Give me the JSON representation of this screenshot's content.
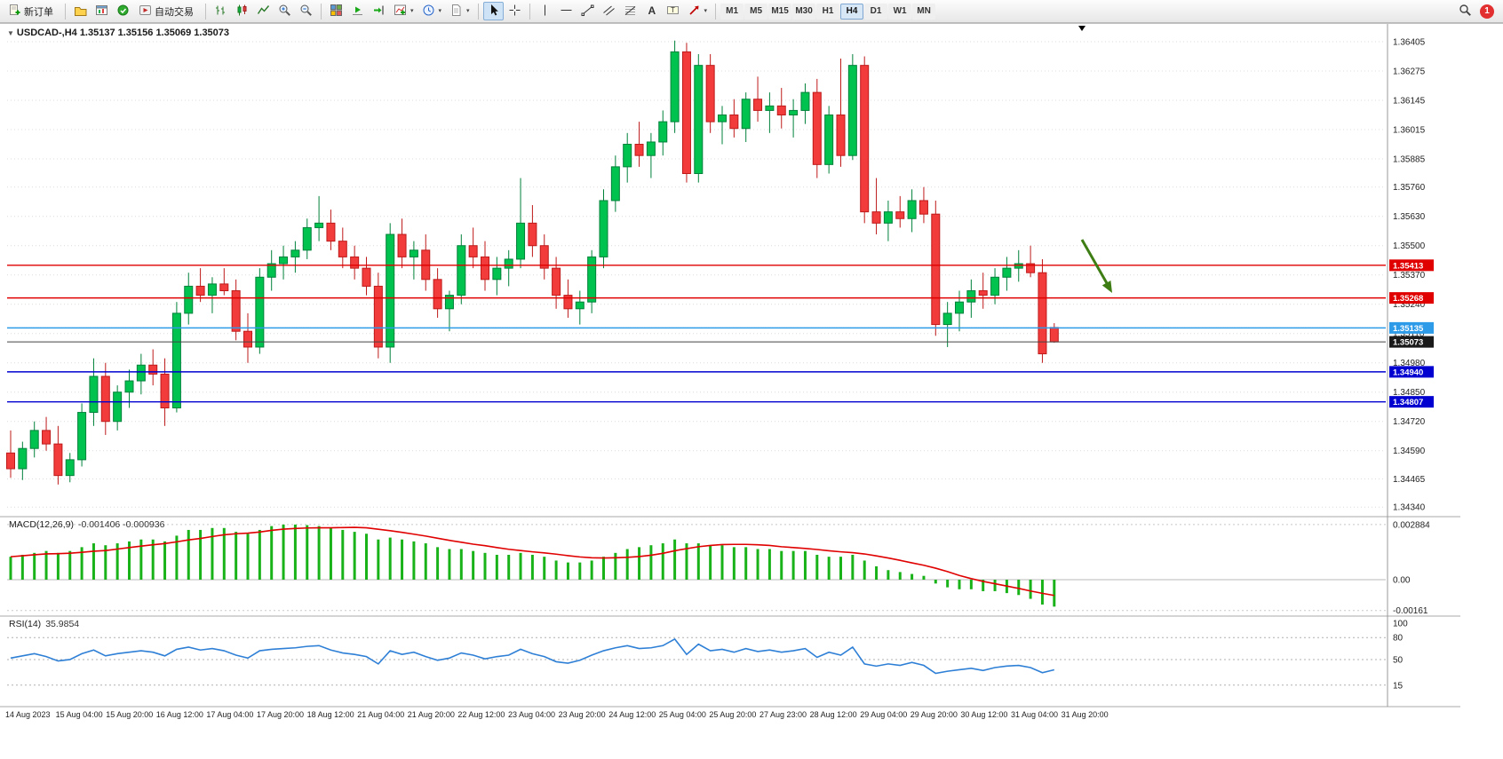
{
  "toolbar": {
    "new_order_label": "新订单",
    "autotrading_label": "自动交易",
    "timeframes": [
      "M1",
      "M5",
      "M15",
      "M30",
      "H1",
      "H4",
      "D1",
      "W1",
      "MN"
    ],
    "active_timeframe": "H4",
    "notification_count": "1",
    "icon_names": [
      "new-order",
      "profiles",
      "new-chart",
      "market",
      "autotrading",
      "bar-chart",
      "candlestick-chart",
      "line-chart",
      "zoom-in",
      "zoom-out",
      "tile-windows",
      "auto-scroll",
      "chart-shift",
      "indicators",
      "periods",
      "templates",
      "cursor",
      "crosshair",
      "vertical-line",
      "horizontal-line",
      "trendline",
      "channel",
      "fibonacci",
      "text",
      "text-label",
      "shapes",
      "search"
    ]
  },
  "chart_window": {
    "symbol_label": "USDCAD-,H4 1.35137 1.35156 1.35069 1.35073",
    "price_axis": [
      "1.36405",
      "1.36275",
      "1.36145",
      "1.36015",
      "1.35885",
      "1.35760",
      "1.35630",
      "1.35500",
      "1.35370",
      "1.35240",
      "1.35110",
      "1.34980",
      "1.34850",
      "1.34720",
      "1.34590",
      "1.34465",
      "1.34340"
    ],
    "time_axis": [
      "14 Aug 2023",
      "15 Aug 04:00",
      "15 Aug 20:00",
      "16 Aug 12:00",
      "17 Aug 04:00",
      "17 Aug 20:00",
      "18 Aug 12:00",
      "21 Aug 04:00",
      "21 Aug 20:00",
      "22 Aug 12:00",
      "23 Aug 04:00",
      "23 Aug 20:00",
      "24 Aug 12:00",
      "25 Aug 04:00",
      "25 Aug 20:00",
      "27 Aug 23:00",
      "28 Aug 12:00",
      "29 Aug 04:00",
      "29 Aug 20:00",
      "30 Aug 12:00",
      "31 Aug 04:00",
      "31 Aug 20:00"
    ],
    "hlines": [
      {
        "price": 1.35413,
        "label": "1.35413",
        "color": "#E00000"
      },
      {
        "price": 1.35268,
        "label": "1.35268",
        "color": "#E00000"
      },
      {
        "price": 1.35135,
        "label": "1.35135",
        "color": "#2E9BE8"
      },
      {
        "price": 1.3494,
        "label": "1.34940",
        "color": "#0000D0"
      },
      {
        "price": 1.34807,
        "label": "1.34807",
        "color": "#0000D0"
      }
    ],
    "bid": {
      "price": 1.35073,
      "label": "1.35073",
      "color": "#1A1A1A"
    },
    "colors": {
      "up": "#00C24E",
      "up_border": "#00813A",
      "down": "#F23B3B",
      "down_border": "#BE1A1A",
      "grid": "#DCDCDC",
      "macd_hist": "#19B219",
      "macd_signal": "#E00000",
      "rsi_line": "#2E7FD6",
      "arrow": "#3E7D14"
    }
  },
  "chart_data": {
    "type": "candlestick",
    "symbol": "USDCAD",
    "period": "H4",
    "ohlc_current": {
      "open": "1.35137",
      "high": "1.35156",
      "low": "1.35069",
      "close": "1.35073"
    },
    "candles": [
      [
        1.3458,
        1.3468,
        1.3447,
        1.3451
      ],
      [
        1.3451,
        1.3463,
        1.3446,
        1.346
      ],
      [
        1.346,
        1.3472,
        1.3456,
        1.3468
      ],
      [
        1.3468,
        1.3474,
        1.3459,
        1.3462
      ],
      [
        1.3462,
        1.347,
        1.3444,
        1.3448
      ],
      [
        1.3448,
        1.3458,
        1.3445,
        1.3455
      ],
      [
        1.3455,
        1.348,
        1.3452,
        1.3476
      ],
      [
        1.3476,
        1.35,
        1.347,
        1.3492
      ],
      [
        1.3492,
        1.3498,
        1.3466,
        1.3472
      ],
      [
        1.3472,
        1.3488,
        1.3468,
        1.3485
      ],
      [
        1.3485,
        1.3495,
        1.3478,
        1.349
      ],
      [
        1.349,
        1.3502,
        1.3484,
        1.3497
      ],
      [
        1.3497,
        1.3504,
        1.3488,
        1.3493
      ],
      [
        1.3493,
        1.35,
        1.347,
        1.3478
      ],
      [
        1.3478,
        1.3525,
        1.3476,
        1.352
      ],
      [
        1.352,
        1.3538,
        1.3515,
        1.3532
      ],
      [
        1.3532,
        1.354,
        1.3525,
        1.3528
      ],
      [
        1.3528,
        1.3536,
        1.352,
        1.3533
      ],
      [
        1.3533,
        1.354,
        1.3528,
        1.353
      ],
      [
        1.353,
        1.3535,
        1.3508,
        1.3512
      ],
      [
        1.3512,
        1.352,
        1.3498,
        1.3505
      ],
      [
        1.3505,
        1.354,
        1.3502,
        1.3536
      ],
      [
        1.3536,
        1.3548,
        1.353,
        1.3542
      ],
      [
        1.3542,
        1.355,
        1.3535,
        1.3545
      ],
      [
        1.3545,
        1.3552,
        1.3538,
        1.3548
      ],
      [
        1.3548,
        1.3562,
        1.3544,
        1.3558
      ],
      [
        1.3558,
        1.3572,
        1.3552,
        1.356
      ],
      [
        1.356,
        1.3566,
        1.3548,
        1.3552
      ],
      [
        1.3552,
        1.3558,
        1.354,
        1.3545
      ],
      [
        1.3545,
        1.355,
        1.3535,
        1.354
      ],
      [
        1.354,
        1.3545,
        1.3528,
        1.3532
      ],
      [
        1.3532,
        1.3538,
        1.35,
        1.3505
      ],
      [
        1.3505,
        1.356,
        1.3498,
        1.3555
      ],
      [
        1.3555,
        1.3562,
        1.354,
        1.3545
      ],
      [
        1.3545,
        1.3552,
        1.3535,
        1.3548
      ],
      [
        1.3548,
        1.3555,
        1.353,
        1.3535
      ],
      [
        1.3535,
        1.354,
        1.3518,
        1.3522
      ],
      [
        1.3522,
        1.353,
        1.3512,
        1.3528
      ],
      [
        1.3528,
        1.3555,
        1.3524,
        1.355
      ],
      [
        1.355,
        1.3558,
        1.354,
        1.3545
      ],
      [
        1.3545,
        1.3552,
        1.353,
        1.3535
      ],
      [
        1.3535,
        1.3545,
        1.3528,
        1.354
      ],
      [
        1.354,
        1.3548,
        1.3532,
        1.3544
      ],
      [
        1.3544,
        1.358,
        1.354,
        1.356
      ],
      [
        1.356,
        1.3568,
        1.3545,
        1.355
      ],
      [
        1.355,
        1.3555,
        1.3535,
        1.354
      ],
      [
        1.354,
        1.3545,
        1.3522,
        1.3528
      ],
      [
        1.3528,
        1.3535,
        1.3518,
        1.3522
      ],
      [
        1.3522,
        1.353,
        1.3515,
        1.3525
      ],
      [
        1.3525,
        1.3548,
        1.352,
        1.3545
      ],
      [
        1.3545,
        1.3575,
        1.354,
        1.357
      ],
      [
        1.357,
        1.359,
        1.3565,
        1.3585
      ],
      [
        1.3585,
        1.36,
        1.3578,
        1.3595
      ],
      [
        1.3595,
        1.3605,
        1.3585,
        1.359
      ],
      [
        1.359,
        1.36,
        1.358,
        1.3596
      ],
      [
        1.3596,
        1.361,
        1.359,
        1.3605
      ],
      [
        1.3605,
        1.3641,
        1.36,
        1.3636
      ],
      [
        1.3636,
        1.364,
        1.3578,
        1.3582
      ],
      [
        1.3582,
        1.3635,
        1.3578,
        1.363
      ],
      [
        1.363,
        1.3635,
        1.36,
        1.3605
      ],
      [
        1.3605,
        1.3612,
        1.3595,
        1.3608
      ],
      [
        1.3608,
        1.3615,
        1.3598,
        1.3602
      ],
      [
        1.3602,
        1.3618,
        1.3596,
        1.3615
      ],
      [
        1.3615,
        1.3625,
        1.3605,
        1.361
      ],
      [
        1.361,
        1.3618,
        1.36,
        1.3612
      ],
      [
        1.3612,
        1.362,
        1.3602,
        1.3608
      ],
      [
        1.3608,
        1.3615,
        1.3598,
        1.361
      ],
      [
        1.361,
        1.3622,
        1.3604,
        1.3618
      ],
      [
        1.3618,
        1.3624,
        1.358,
        1.3586
      ],
      [
        1.3586,
        1.3612,
        1.3582,
        1.3608
      ],
      [
        1.3608,
        1.3633,
        1.3585,
        1.359
      ],
      [
        1.359,
        1.3635,
        1.3588,
        1.363
      ],
      [
        1.363,
        1.3634,
        1.356,
        1.3565
      ],
      [
        1.3565,
        1.358,
        1.3555,
        1.356
      ],
      [
        1.356,
        1.357,
        1.3552,
        1.3565
      ],
      [
        1.3565,
        1.3572,
        1.3558,
        1.3562
      ],
      [
        1.3562,
        1.3575,
        1.3556,
        1.357
      ],
      [
        1.357,
        1.3576,
        1.356,
        1.3564
      ],
      [
        1.3564,
        1.357,
        1.351,
        1.3515
      ],
      [
        1.3515,
        1.3525,
        1.3505,
        1.352
      ],
      [
        1.352,
        1.353,
        1.3512,
        1.3525
      ],
      [
        1.3525,
        1.3535,
        1.3518,
        1.353
      ],
      [
        1.353,
        1.3538,
        1.3522,
        1.3528
      ],
      [
        1.3528,
        1.354,
        1.3524,
        1.3536
      ],
      [
        1.3536,
        1.3545,
        1.353,
        1.354
      ],
      [
        1.354,
        1.3548,
        1.3534,
        1.3542
      ],
      [
        1.3542,
        1.355,
        1.3536,
        1.3538
      ],
      [
        1.3538,
        1.3544,
        1.3498,
        1.3502
      ],
      [
        1.35137,
        1.35156,
        1.35069,
        1.35073
      ]
    ]
  },
  "indicators": {
    "macd": {
      "name": "MACD(12,26,9)",
      "values": "-0.001406 -0.000936",
      "axis": [
        {
          "label": "0.002884",
          "value": 0.002884
        },
        {
          "label": "0.00",
          "value": 0
        },
        {
          "label": "-0.00161",
          "value": -0.00161
        }
      ],
      "histogram": [
        0.0012,
        0.0013,
        0.0014,
        0.0015,
        0.0014,
        0.0015,
        0.0017,
        0.0019,
        0.0018,
        0.0019,
        0.002,
        0.0021,
        0.0021,
        0.002,
        0.0023,
        0.0026,
        0.0026,
        0.0027,
        0.0027,
        0.0025,
        0.0024,
        0.0026,
        0.0028,
        0.00288,
        0.00288,
        0.00285,
        0.0028,
        0.0027,
        0.0026,
        0.0025,
        0.0024,
        0.0021,
        0.0022,
        0.0021,
        0.002,
        0.0019,
        0.0017,
        0.0016,
        0.0016,
        0.0015,
        0.0014,
        0.0013,
        0.0013,
        0.0014,
        0.0013,
        0.0012,
        0.001,
        0.0009,
        0.0009,
        0.001,
        0.0012,
        0.0014,
        0.0016,
        0.0017,
        0.0018,
        0.0019,
        0.0021,
        0.0019,
        0.0019,
        0.0018,
        0.0018,
        0.0017,
        0.0017,
        0.0016,
        0.0016,
        0.0015,
        0.0015,
        0.0015,
        0.0013,
        0.0012,
        0.0012,
        0.0013,
        0.001,
        0.0007,
        0.0005,
        0.0004,
        0.0003,
        0.0002,
        -0.0002,
        -0.0004,
        -0.0005,
        -0.0005,
        -0.0006,
        -0.0006,
        -0.0007,
        -0.0008,
        -0.001,
        -0.0013,
        -0.001406
      ]
    },
    "rsi": {
      "name": "RSI(14)",
      "value": "35.9854",
      "axis": [
        {
          "label": "100",
          "value": 100
        },
        {
          "label": "80",
          "value": 80
        },
        {
          "label": "50",
          "value": 50
        },
        {
          "label": "15",
          "value": 15
        }
      ],
      "values": [
        52,
        55,
        58,
        54,
        48,
        50,
        58,
        63,
        55,
        58,
        60,
        62,
        60,
        55,
        64,
        67,
        63,
        65,
        62,
        56,
        52,
        62,
        64,
        65,
        66,
        68,
        69,
        63,
        59,
        57,
        54,
        44,
        62,
        57,
        60,
        54,
        49,
        52,
        59,
        56,
        51,
        54,
        56,
        64,
        58,
        54,
        47,
        45,
        49,
        56,
        62,
        66,
        69,
        65,
        66,
        69,
        78,
        57,
        71,
        62,
        64,
        60,
        65,
        61,
        63,
        60,
        62,
        65,
        53,
        60,
        56,
        67,
        44,
        41,
        44,
        42,
        46,
        42,
        31,
        34,
        36,
        38,
        35,
        39,
        41,
        42,
        39,
        32,
        35.9854
      ]
    }
  }
}
